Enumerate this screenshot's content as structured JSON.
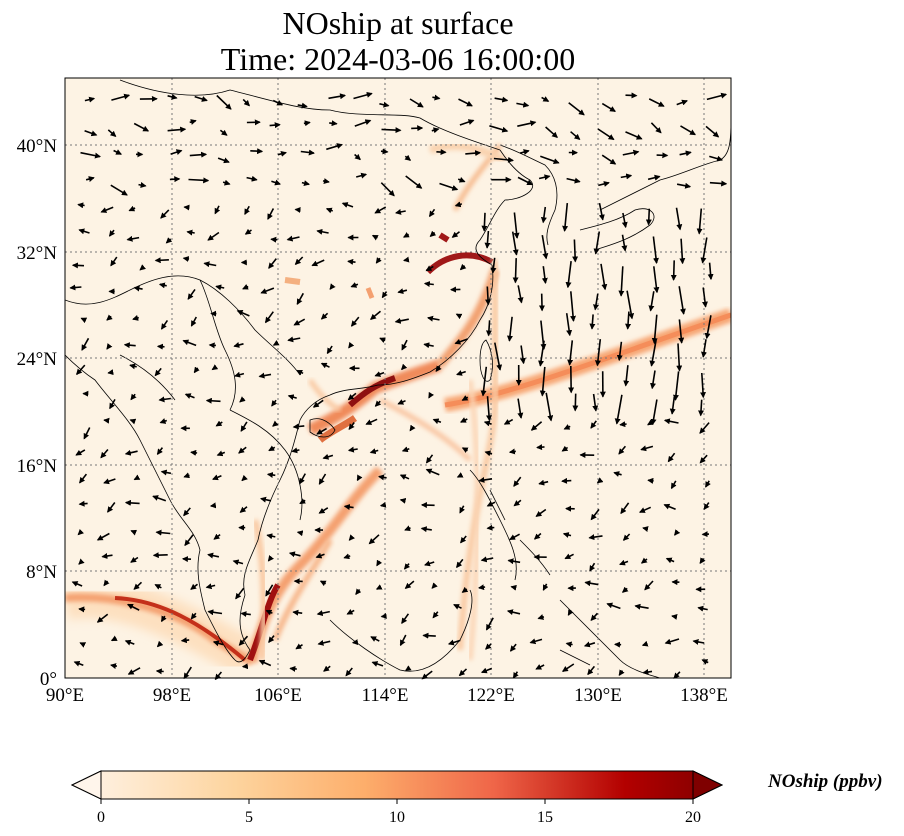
{
  "title": "NOship at surface",
  "subtitle": "Time: 2024-03-06 16:00:00",
  "map": {
    "lon_range": [
      90,
      140
    ],
    "lat_range": [
      0,
      45
    ],
    "x_ticks": [
      "90°E",
      "98°E",
      "106°E",
      "114°E",
      "122°E",
      "130°E",
      "138°E"
    ],
    "y_ticks": [
      "0°",
      "8°N",
      "16°N",
      "24°N",
      "32°N",
      "40°N"
    ],
    "gridlines": true,
    "colors": {
      "low": "#fdf3e4",
      "mid": "#fdb96f",
      "high": "#e34a2a",
      "max": "#7f0000"
    }
  },
  "colorbar": {
    "label": "NOship (ppbv)",
    "ticks": [
      "0",
      "5",
      "10",
      "15",
      "20"
    ],
    "range": [
      0,
      20
    ],
    "extend": "both"
  }
}
